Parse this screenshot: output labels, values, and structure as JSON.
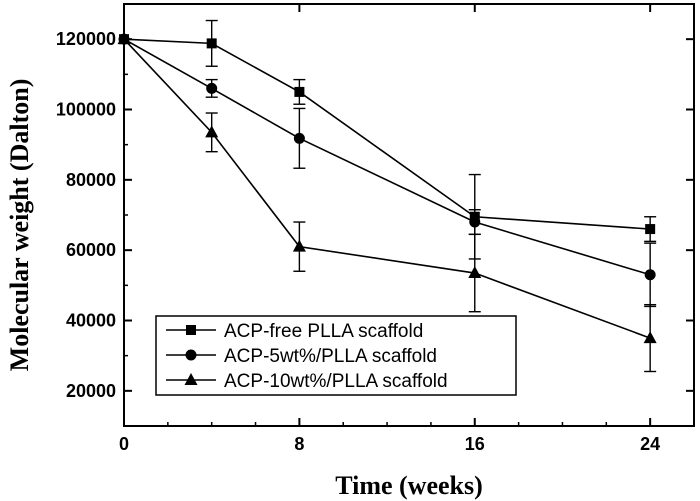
{
  "chart_data": {
    "type": "line",
    "title": "",
    "xlabel": "Time (weeks)",
    "ylabel": "Molecular weight (Dalton)",
    "xlim": [
      0,
      26
    ],
    "ylim": [
      10000,
      130000
    ],
    "xticks": [
      0,
      8,
      16,
      24
    ],
    "yticks": [
      20000,
      40000,
      60000,
      80000,
      100000,
      120000
    ],
    "x": [
      0,
      4,
      8,
      16,
      24
    ],
    "grid": false,
    "legend_position": "bottom-left",
    "series": [
      {
        "name": "ACP-free PLLA scaffold",
        "marker": "square",
        "values": [
          120000,
          118800,
          105000,
          69500,
          66000
        ],
        "errors": [
          0,
          6500,
          3500,
          12000,
          3500
        ]
      },
      {
        "name": "ACP-5wt%/PLLA scaffold",
        "marker": "circle",
        "values": [
          120000,
          106000,
          91800,
          68000,
          53000
        ],
        "errors": [
          0,
          2500,
          8500,
          3500,
          9000
        ]
      },
      {
        "name": "ACP-10wt%/PLLA scaffold",
        "marker": "triangle",
        "values": [
          120000,
          93500,
          61000,
          53500,
          35000
        ],
        "errors": [
          0,
          5500,
          7000,
          11000,
          9500
        ]
      }
    ]
  }
}
